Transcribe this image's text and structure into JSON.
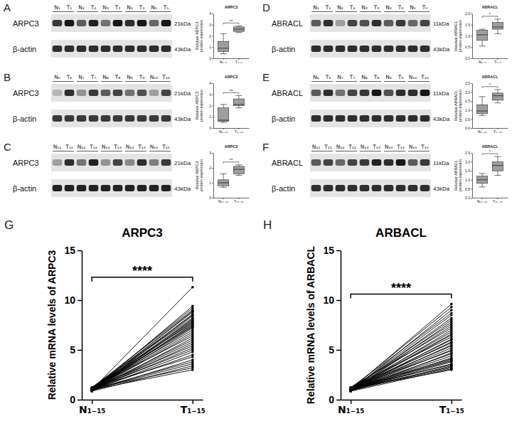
{
  "chart_data": [
    {
      "type": "box",
      "panel": "A",
      "title": "ARPC3",
      "ylabel": "Relative ARPC3 protein expression",
      "categories": [
        "N₁₋₅",
        "T₁₋₅"
      ],
      "boxes": [
        {
          "min": 0.4,
          "q1": 0.6,
          "median": 0.9,
          "q3": 1.5,
          "max": 2.2
        },
        {
          "min": 2.3,
          "q1": 2.4,
          "median": 2.6,
          "q3": 2.8,
          "max": 2.9
        }
      ],
      "ylim": [
        0,
        4
      ],
      "yticks": [
        0,
        1,
        2,
        3,
        4
      ],
      "significance": "**",
      "color": "#9e9e9e",
      "blot": {
        "lanes": [
          "N₁",
          "T₁",
          "N₂",
          "T₂",
          "N₃",
          "T₃",
          "N₄",
          "T₄",
          "N₅",
          "T₅"
        ],
        "rows": [
          {
            "label": "ARPC3",
            "size": "21kDa",
            "intensity": [
              0.75,
              0.9,
              0.6,
              0.85,
              0.5,
              0.9,
              0.8,
              0.9,
              0.55,
              0.9
            ]
          },
          {
            "label": "β-actin",
            "size": "43kDa",
            "intensity": [
              0.8,
              0.8,
              0.8,
              0.8,
              0.8,
              0.8,
              0.8,
              0.8,
              0.8,
              0.8
            ]
          }
        ]
      }
    },
    {
      "type": "box",
      "panel": "B",
      "title": "ARPC3",
      "ylabel": "Relative ARPC3 protein expression",
      "categories": [
        "N₆₋₁₀",
        "T₆₋₁₀"
      ],
      "boxes": [
        {
          "min": 0.5,
          "q1": 0.6,
          "median": 0.7,
          "q3": 1.8,
          "max": 2.1
        },
        {
          "min": 1.8,
          "q1": 2.0,
          "median": 2.1,
          "q3": 2.6,
          "max": 2.9
        }
      ],
      "ylim": [
        0,
        4
      ],
      "yticks": [
        0,
        1,
        2,
        3,
        4
      ],
      "significance": "**",
      "color": "#9e9e9e",
      "blot": {
        "lanes": [
          "N₆",
          "T₆",
          "N₇",
          "T₇",
          "N₈",
          "T₈",
          "N₉",
          "T₉",
          "N₁₀",
          "T₁₀"
        ],
        "rows": [
          {
            "label": "ARPC3",
            "size": "21kDa",
            "intensity": [
              0.2,
              0.8,
              0.35,
              0.75,
              0.6,
              0.7,
              0.5,
              0.65,
              0.3,
              0.7
            ]
          },
          {
            "label": "β-actin",
            "size": "43kDa",
            "intensity": [
              0.75,
              0.75,
              0.75,
              0.75,
              0.75,
              0.75,
              0.75,
              0.75,
              0.75,
              0.75
            ]
          }
        ]
      }
    },
    {
      "type": "box",
      "panel": "C",
      "title": "ARPC3",
      "ylabel": "Relative ARPC3 protein expression",
      "categories": [
        "N₁₁₋₁₅",
        "T₁₁₋₁₅"
      ],
      "boxes": [
        {
          "min": 0.7,
          "q1": 0.8,
          "median": 1.0,
          "q3": 1.2,
          "max": 1.6
        },
        {
          "min": 1.5,
          "q1": 1.6,
          "median": 1.9,
          "q3": 2.1,
          "max": 2.2
        }
      ],
      "ylim": [
        0,
        3
      ],
      "yticks": [
        0,
        1,
        2,
        3
      ],
      "significance": "**",
      "color": "#9e9e9e",
      "blot": {
        "lanes": [
          "N₁₁",
          "T₁₁",
          "N₁₂",
          "T₁₂",
          "N₁₃",
          "T₁₃",
          "N₁₄",
          "T₁₄",
          "N₁₅",
          "T₁₅"
        ],
        "rows": [
          {
            "label": "ARPC3",
            "size": "21kDa",
            "intensity": [
              0.3,
              0.8,
              0.5,
              0.85,
              0.35,
              0.7,
              0.4,
              0.8,
              0.45,
              0.75
            ]
          },
          {
            "label": "β-actin",
            "size": "43kDa",
            "intensity": [
              0.85,
              0.85,
              0.85,
              0.85,
              0.85,
              0.85,
              0.85,
              0.85,
              0.85,
              0.85
            ]
          }
        ]
      }
    },
    {
      "type": "box",
      "panel": "D",
      "title": "ABRACL",
      "ylabel": "Relative ABRACL protein expression",
      "categories": [
        "N₁₋₅",
        "T₁₋₅"
      ],
      "boxes": [
        {
          "min": 0.55,
          "q1": 0.8,
          "median": 1.05,
          "q3": 1.25,
          "max": 1.3
        },
        {
          "min": 1.1,
          "q1": 1.3,
          "median": 1.4,
          "q3": 1.6,
          "max": 1.75
        }
      ],
      "ylim": [
        0,
        2
      ],
      "yticks": [
        {
          "value": 0,
          "label": "0.0"
        },
        {
          "value": 0.5,
          "label": "0.5"
        },
        {
          "value": 1,
          "label": "1.0"
        },
        {
          "value": 1.5,
          "label": "1.5"
        },
        {
          "value": 2,
          "label": "2.0"
        }
      ],
      "significance": "*",
      "color": "#9e9e9e",
      "blot": {
        "lanes": [
          "N₁",
          "T₁",
          "N₂",
          "T₂",
          "N₃",
          "T₃",
          "N₄",
          "T₄",
          "N₅",
          "T₅"
        ],
        "rows": [
          {
            "label": "ABRACL",
            "size": "11kDa",
            "intensity": [
              0.6,
              0.8,
              0.3,
              0.7,
              0.65,
              0.8,
              0.6,
              0.75,
              0.55,
              0.7
            ]
          },
          {
            "label": "β-actin",
            "size": "43kDa",
            "intensity": [
              0.8,
              0.8,
              0.8,
              0.8,
              0.8,
              0.8,
              0.8,
              0.8,
              0.8,
              0.8
            ]
          }
        ]
      }
    },
    {
      "type": "box",
      "panel": "E",
      "title": "ABRACL",
      "ylabel": "Relative ABRACL protein expression",
      "categories": [
        "N₆₋₁₀",
        "T₆₋₁₀"
      ],
      "boxes": [
        {
          "min": 0.7,
          "q1": 0.8,
          "median": 0.95,
          "q3": 1.3,
          "max": 1.75
        },
        {
          "min": 1.4,
          "q1": 1.55,
          "median": 1.8,
          "q3": 1.95,
          "max": 2.15
        }
      ],
      "ylim": [
        0,
        2.5
      ],
      "yticks": [
        {
          "value": 0,
          "label": "0.0"
        },
        {
          "value": 0.5,
          "label": "0.5"
        },
        {
          "value": 1,
          "label": "1.0"
        },
        {
          "value": 1.5,
          "label": "1.5"
        },
        {
          "value": 2,
          "label": "2.0"
        },
        {
          "value": 2.5,
          "label": "2.5"
        }
      ],
      "significance": "*",
      "color": "#9e9e9e",
      "blot": {
        "lanes": [
          "N₆",
          "T₆",
          "N₇",
          "T₇",
          "N₈",
          "T₈",
          "N₉",
          "T₉",
          "N₁₀",
          "T₁₀"
        ],
        "rows": [
          {
            "label": "ABRACL",
            "size": "11kDa",
            "intensity": [
              0.6,
              0.8,
              0.5,
              0.7,
              0.75,
              0.9,
              0.65,
              0.8,
              0.8,
              0.9
            ]
          },
          {
            "label": "β-actin",
            "size": "43kDa",
            "intensity": [
              0.8,
              0.8,
              0.8,
              0.8,
              0.8,
              0.8,
              0.8,
              0.8,
              0.8,
              0.8
            ]
          }
        ]
      }
    },
    {
      "type": "box",
      "panel": "F",
      "title": "ABRACL",
      "ylabel": "Relative ABRACL protein expression",
      "categories": [
        "N₁₁₋₁₅",
        "T₁₁₋₁₅"
      ],
      "boxes": [
        {
          "min": 0.6,
          "q1": 0.8,
          "median": 1.0,
          "q3": 1.2,
          "max": 1.35
        },
        {
          "min": 1.25,
          "q1": 1.5,
          "median": 1.8,
          "q3": 2.0,
          "max": 2.3
        }
      ],
      "ylim": [
        0,
        2.5
      ],
      "yticks": [
        {
          "value": 0,
          "label": "0.0"
        },
        {
          "value": 0.5,
          "label": "0.5"
        },
        {
          "value": 1,
          "label": "1.0"
        },
        {
          "value": 1.5,
          "label": "1.5"
        },
        {
          "value": 2,
          "label": "2.0"
        },
        {
          "value": 2.5,
          "label": "2.5"
        }
      ],
      "significance": "*",
      "color": "#9e9e9e",
      "blot": {
        "lanes": [
          "N₁₁",
          "T₁₁",
          "N₁₂",
          "T₁₂",
          "N₁₃",
          "T₁₃",
          "N₁₄",
          "T₁₄",
          "N₁₅",
          "T₁₅"
        ],
        "rows": [
          {
            "label": "ABRACL",
            "size": "11kDa",
            "intensity": [
              0.6,
              0.7,
              0.55,
              0.7,
              0.75,
              0.85,
              0.8,
              0.9,
              0.6,
              0.75
            ]
          },
          {
            "label": "β-actin",
            "size": "43kDa",
            "intensity": [
              0.8,
              0.8,
              0.8,
              0.8,
              0.8,
              0.8,
              0.8,
              0.8,
              0.8,
              0.8
            ]
          }
        ]
      }
    },
    {
      "type": "paired_line",
      "panel": "G",
      "title": "ARPC3",
      "ylabel": "Relative mRNA levels of ARPC3",
      "categories": [
        "N₁₋₁₅",
        "T₁₋₁₅"
      ],
      "values": [
        [
          1.0,
          11.3
        ],
        [
          0.9,
          9.4
        ],
        [
          1.1,
          9.2
        ],
        [
          1.2,
          9.0
        ],
        [
          0.95,
          8.9
        ],
        [
          1.05,
          8.8
        ],
        [
          0.85,
          8.6
        ],
        [
          1.15,
          8.5
        ],
        [
          1.0,
          8.4
        ],
        [
          1.25,
          8.2
        ],
        [
          0.9,
          8.1
        ],
        [
          1.1,
          8.0
        ],
        [
          1.0,
          7.9
        ],
        [
          0.95,
          7.8
        ],
        [
          1.2,
          7.7
        ],
        [
          0.85,
          7.6
        ],
        [
          1.05,
          7.5
        ],
        [
          1.0,
          7.4
        ],
        [
          1.15,
          7.3
        ],
        [
          0.9,
          7.2
        ],
        [
          1.1,
          7.0
        ],
        [
          1.0,
          6.8
        ],
        [
          0.95,
          6.6
        ],
        [
          1.2,
          6.4
        ],
        [
          0.85,
          6.2
        ],
        [
          1.05,
          6.0
        ],
        [
          1.0,
          5.8
        ],
        [
          0.9,
          5.6
        ],
        [
          1.15,
          5.4
        ],
        [
          1.0,
          5.2
        ],
        [
          1.1,
          5.0
        ],
        [
          0.95,
          4.8
        ],
        [
          1.0,
          4.5
        ],
        [
          1.2,
          4.3
        ],
        [
          0.9,
          4.0
        ],
        [
          1.05,
          3.8
        ],
        [
          1.0,
          3.6
        ],
        [
          0.85,
          3.4
        ],
        [
          1.1,
          3.2
        ],
        [
          1.0,
          3.0
        ]
      ],
      "ylim": [
        0,
        15
      ],
      "yticks": [
        0,
        5,
        10,
        15
      ],
      "significance": "****",
      "color": "#000000",
      "marker": "circle"
    },
    {
      "type": "paired_line",
      "panel": "H",
      "title": "ARBACL",
      "ylabel": "Relative mRNA levels of ARBACL",
      "categories": [
        "N₁₋₁₅",
        "T₁₋₁₅"
      ],
      "values": [
        [
          1.0,
          9.6
        ],
        [
          1.1,
          9.3
        ],
        [
          0.9,
          9.0
        ],
        [
          1.2,
          8.7
        ],
        [
          1.0,
          8.5
        ],
        [
          0.95,
          8.2
        ],
        [
          1.05,
          8.0
        ],
        [
          0.85,
          7.8
        ],
        [
          1.15,
          7.6
        ],
        [
          1.0,
          7.4
        ],
        [
          1.25,
          7.2
        ],
        [
          0.9,
          7.0
        ],
        [
          1.1,
          6.8
        ],
        [
          1.0,
          6.6
        ],
        [
          0.95,
          6.5
        ],
        [
          1.2,
          6.3
        ],
        [
          0.85,
          6.1
        ],
        [
          1.05,
          6.0
        ],
        [
          1.0,
          5.8
        ],
        [
          1.15,
          5.7
        ],
        [
          0.9,
          5.5
        ],
        [
          1.1,
          5.4
        ],
        [
          1.0,
          5.2
        ],
        [
          0.95,
          5.0
        ],
        [
          1.2,
          4.9
        ],
        [
          0.85,
          4.7
        ],
        [
          1.05,
          4.6
        ],
        [
          1.0,
          4.4
        ],
        [
          0.9,
          4.2
        ],
        [
          1.15,
          4.1
        ],
        [
          1.0,
          4.0
        ],
        [
          1.1,
          3.9
        ],
        [
          0.95,
          3.8
        ],
        [
          1.0,
          3.6
        ],
        [
          1.2,
          3.5
        ],
        [
          0.9,
          3.4
        ],
        [
          1.05,
          3.3
        ],
        [
          1.0,
          3.2
        ],
        [
          0.85,
          3.1
        ],
        [
          1.1,
          3.0
        ]
      ],
      "ylim": [
        0,
        15
      ],
      "yticks": [
        0,
        5,
        10,
        15
      ],
      "significance": "****",
      "color": "#000000",
      "marker": "circle"
    }
  ]
}
